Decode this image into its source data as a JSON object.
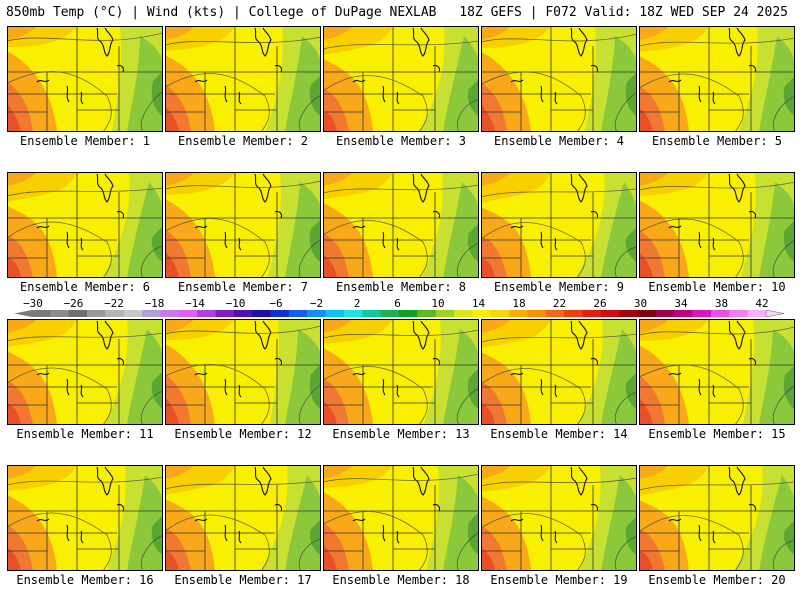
{
  "header": {
    "title_left": "850mb Temp (°C) | Wind (kts) | College of DuPage NEXLAB",
    "title_right": "18Z GEFS | F072 Valid: 18Z WED SEP 24 2025"
  },
  "members": [
    {
      "label": "Ensemble Member: 1"
    },
    {
      "label": "Ensemble Member: 2"
    },
    {
      "label": "Ensemble Member: 3"
    },
    {
      "label": "Ensemble Member: 4"
    },
    {
      "label": "Ensemble Member: 5"
    },
    {
      "label": "Ensemble Member: 6"
    },
    {
      "label": "Ensemble Member: 7"
    },
    {
      "label": "Ensemble Member: 8"
    },
    {
      "label": "Ensemble Member: 9"
    },
    {
      "label": "Ensemble Member: 10"
    },
    {
      "label": "Ensemble Member: 11"
    },
    {
      "label": "Ensemble Member: 12"
    },
    {
      "label": "Ensemble Member: 13"
    },
    {
      "label": "Ensemble Member: 14"
    },
    {
      "label": "Ensemble Member: 15"
    },
    {
      "label": "Ensemble Member: 16"
    },
    {
      "label": "Ensemble Member: 17"
    },
    {
      "label": "Ensemble Member: 18"
    },
    {
      "label": "Ensemble Member: 19"
    },
    {
      "label": "Ensemble Member: 20"
    }
  ],
  "colorbar": {
    "ticks": [
      "-30",
      "-26",
      "-22",
      "-18",
      "-14",
      "-10",
      "-6",
      "-2",
      "2",
      "6",
      "10",
      "14",
      "18",
      "22",
      "26",
      "30",
      "34",
      "38",
      "42"
    ],
    "colors": [
      "#7a7a7a",
      "#8c8c8c",
      "#6e6e6e",
      "#9a9a9a",
      "#b4b4b4",
      "#c8c8c8",
      "#b0a0d8",
      "#c878e8",
      "#e060f0",
      "#b040e0",
      "#8020c0",
      "#5010b0",
      "#2010a0",
      "#1030d0",
      "#1060f0",
      "#1090f0",
      "#10c0f0",
      "#20e0e0",
      "#10c8a0",
      "#20b050",
      "#10a020",
      "#60b820",
      "#a0d020",
      "#d8e818",
      "#f8f000",
      "#f8d800",
      "#f8b000",
      "#f89000",
      "#f06818",
      "#e84010",
      "#e02010",
      "#c81010",
      "#a00808",
      "#800010",
      "#a00050",
      "#c00080",
      "#d818b8",
      "#e850e0",
      "#f080f0",
      "#f8b0f8"
    ],
    "fields": [
      "temperature"
    ]
  },
  "field_colors": {
    "green_dark": "#5aa832",
    "green": "#8cc83c",
    "yellow_green": "#c8e032",
    "yellow": "#f8f000",
    "gold": "#f8d000",
    "orange": "#f8a818",
    "red_orange": "#f07830",
    "red": "#e85028"
  }
}
